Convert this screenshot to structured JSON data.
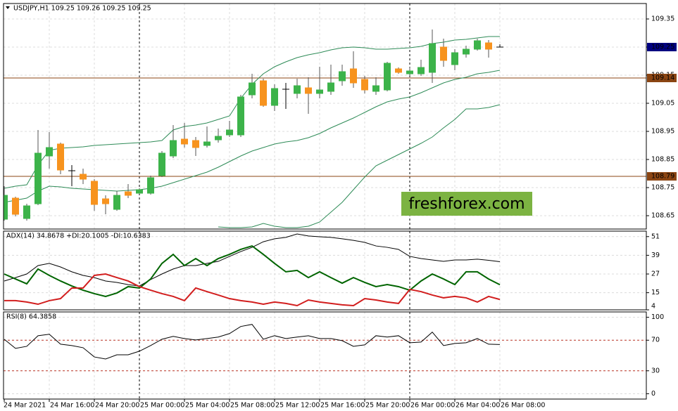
{
  "chart_data": [
    {
      "type": "candlestick",
      "title": "USDJPY,H1  109.25 109.26 109.25 109.25",
      "categories": [
        "24 Mar 2021",
        null,
        null,
        null,
        "24 Mar 16:00",
        null,
        null,
        null,
        "24 Mar 20:00",
        null,
        null,
        null,
        "25 Mar 00:00",
        null,
        null,
        null,
        "25 Mar 04:00",
        null,
        null,
        null,
        "25 Mar 08:00",
        null,
        null,
        null,
        "25 Mar 12:00",
        null,
        null,
        null,
        "25 Mar 16:00",
        null,
        null,
        null,
        "25 Mar 20:00",
        null,
        null,
        null,
        "26 Mar 00:00",
        null,
        null,
        null,
        "26 Mar 04:00",
        null,
        null,
        null,
        "26 Mar 08:00"
      ],
      "open": [
        108.6375,
        108.7125,
        108.64,
        108.6925,
        108.8625,
        108.905,
        108.81,
        108.7975,
        108.7725,
        108.71,
        108.6725,
        108.735,
        108.73,
        108.73,
        108.7925,
        108.8625,
        108.9225,
        108.9175,
        108.9,
        108.92,
        108.9375,
        108.9375,
        109.08,
        109.13,
        109.0425,
        109.1,
        109.085,
        109.105,
        109.085,
        109.0925,
        109.13,
        109.1725,
        109.135,
        109.0925,
        109.0975,
        109.1725,
        109.155,
        109.155,
        109.16,
        109.25,
        109.1875,
        109.225,
        109.2425,
        109.265,
        109.25
      ],
      "high": [
        108.755,
        108.7175,
        108.6925,
        108.955,
        108.9475,
        108.91,
        108.83,
        108.8175,
        108.78,
        108.7225,
        108.7375,
        108.7625,
        108.7475,
        108.7925,
        108.88,
        108.9725,
        108.98,
        108.93,
        108.9675,
        108.96,
        108.9875,
        109.08,
        109.155,
        109.1375,
        109.1175,
        109.1225,
        109.1375,
        109.1425,
        109.18,
        109.1875,
        109.1875,
        109.235,
        109.1475,
        109.1425,
        109.1975,
        109.1775,
        109.1775,
        109.205,
        109.3125,
        109.28,
        109.2425,
        109.255,
        109.28,
        109.275,
        109.26
      ],
      "low": [
        108.6325,
        108.6475,
        108.6325,
        108.6875,
        108.8175,
        108.7975,
        108.755,
        108.7625,
        108.6675,
        108.655,
        108.6675,
        108.7125,
        108.7275,
        108.725,
        108.7875,
        108.855,
        108.8925,
        108.8625,
        108.8925,
        108.91,
        108.93,
        108.93,
        109.0675,
        109.0375,
        109.0225,
        109.03,
        109.0675,
        109.0125,
        109.0675,
        109.08,
        109.1125,
        109.105,
        109.085,
        109.08,
        109.0925,
        109.155,
        109.1475,
        109.1475,
        109.1225,
        109.18,
        109.1675,
        109.2125,
        109.2375,
        109.2125,
        109.25
      ],
      "close": [
        108.7225,
        108.655,
        108.685,
        108.8725,
        108.8925,
        108.8125,
        108.81,
        108.78,
        108.69,
        108.6925,
        108.7225,
        108.7225,
        108.7425,
        108.785,
        108.8725,
        108.9175,
        108.905,
        108.8925,
        108.9125,
        108.9325,
        108.955,
        109.0725,
        109.1225,
        109.0425,
        109.1025,
        109.1,
        109.1125,
        109.085,
        109.0975,
        109.1225,
        109.1625,
        109.1225,
        109.0975,
        109.1125,
        109.1925,
        109.16,
        109.165,
        109.1775,
        109.2625,
        109.2025,
        109.23,
        109.2425,
        109.2725,
        109.2425,
        109.25
      ],
      "up_color": "#3cb34a",
      "down_color": "#f7931e",
      "doji_color": "#000000",
      "series": [
        {
          "color": "#2e8b57",
          "values": [
            108.7475,
            108.755,
            108.76,
            108.83,
            108.8825,
            108.89,
            108.8925,
            108.895,
            108.9,
            108.9025,
            108.905,
            108.9075,
            108.91,
            108.9125,
            108.9175,
            108.955,
            108.9675,
            108.9725,
            108.98,
            108.9925,
            109.005,
            109.0675,
            109.1175,
            109.155,
            109.18,
            109.1975,
            109.2125,
            109.2225,
            109.23,
            109.24,
            109.2475,
            109.25,
            109.2475,
            109.2425,
            109.2425,
            109.245,
            109.2475,
            109.2525,
            109.2625,
            109.2675,
            109.275,
            109.2775,
            109.2825,
            109.2875,
            109.2875
          ]
        },
        {
          "color": "#2e8b57",
          "values": [
            108.6975,
            108.705,
            108.7125,
            108.7375,
            108.755,
            108.7525,
            108.7475,
            108.745,
            108.7425,
            108.74,
            108.7375,
            108.74,
            108.7425,
            108.7475,
            108.755,
            108.7675,
            108.78,
            108.7925,
            108.805,
            108.8225,
            108.8425,
            108.8625,
            108.88,
            108.8925,
            108.905,
            108.9125,
            108.9175,
            108.9275,
            108.9425,
            108.9625,
            108.98,
            108.9975,
            109.0175,
            109.0375,
            109.055,
            109.065,
            109.0725,
            109.0875,
            109.105,
            109.1225,
            109.135,
            109.1425,
            109.155,
            109.16,
            109.1675
          ]
        },
        {
          "color": "#2e8b57",
          "values": [
            null,
            null,
            null,
            null,
            null,
            null,
            null,
            null,
            null,
            null,
            null,
            null,
            null,
            null,
            null,
            null,
            null,
            null,
            null,
            108.61,
            108.6075,
            108.6075,
            108.61,
            108.6225,
            108.6125,
            108.6075,
            108.6075,
            108.6125,
            108.6275,
            108.6625,
            108.6975,
            108.7425,
            108.7875,
            108.8275,
            108.8475,
            108.8675,
            108.8875,
            108.9075,
            108.93,
            108.9625,
            108.9925,
            109.03,
            109.03,
            109.035,
            109.045
          ]
        }
      ],
      "levels": [
        109.14,
        108.79
      ],
      "level_color": "#8b4513",
      "last_price": 109.25,
      "last_price_color": "#000080",
      "ylim": [
        108.6025,
        109.405
      ],
      "yticks": [
        108.65,
        108.75,
        108.85,
        108.95,
        109.05,
        109.15,
        109.25,
        109.35
      ],
      "grid": true,
      "watermark": "freshforex.com",
      "watermark_color": "#7cb342"
    },
    {
      "type": "line",
      "title": "ADX(14) 34.8678 +DI:20.1005 -DI:10.6383",
      "series": [
        {
          "color": "#000000",
          "width": 1,
          "values": [
            22.5,
            24.7,
            27.0,
            32.4,
            33.8,
            31.5,
            28.4,
            26.1,
            24.7,
            22.5,
            21.6,
            20.2,
            19.3,
            23.4,
            27.0,
            30.2,
            32.4,
            32.4,
            33.8,
            35.1,
            38.3,
            41.4,
            44.1,
            47.7,
            49.6,
            50.5,
            52.7,
            51.4,
            50.9,
            50.5,
            49.6,
            48.6,
            47.3,
            45.0,
            44.1,
            42.8,
            38.3,
            36.9,
            36.0,
            35.1,
            36.0,
            36.0,
            36.5,
            35.8,
            34.87
          ]
        },
        {
          "color": "#006400",
          "width": 2,
          "values": [
            27.0,
            23.8,
            20.7,
            30.2,
            26.1,
            22.5,
            19.3,
            16.6,
            14.4,
            12.6,
            14.8,
            18.9,
            18.0,
            23.8,
            33.8,
            39.6,
            32.4,
            36.9,
            32.4,
            36.9,
            39.6,
            42.8,
            45.0,
            39.6,
            33.8,
            28.4,
            29.3,
            24.7,
            28.4,
            24.7,
            21.1,
            24.7,
            21.6,
            18.9,
            20.2,
            18.9,
            16.6,
            22.5,
            27.0,
            23.8,
            20.2,
            28.4,
            28.4,
            23.8,
            20.1
          ]
        },
        {
          "color": "#d21e1e",
          "width": 2,
          "values": [
            9.9,
            9.9,
            9.0,
            7.6,
            9.9,
            11.2,
            18.0,
            18.0,
            26.1,
            27.0,
            24.7,
            22.5,
            18.9,
            16.6,
            14.4,
            12.6,
            9.9,
            18.0,
            15.7,
            13.5,
            11.2,
            9.9,
            9.0,
            7.6,
            9.0,
            8.1,
            6.7,
            10.3,
            9.0,
            8.1,
            7.2,
            6.7,
            11.2,
            10.3,
            9.0,
            8.1,
            17.1,
            15.7,
            13.5,
            11.7,
            12.6,
            11.7,
            9.0,
            12.6,
            10.64
          ]
        }
      ],
      "ylim": [
        4,
        54.5
      ],
      "yticks": [
        51,
        39,
        27,
        15,
        4
      ],
      "grid": true
    },
    {
      "type": "line",
      "title": "RSI(8) 64.3858",
      "series": [
        {
          "color": "#000000",
          "width": 1,
          "values": [
            71.3,
            59.3,
            62.0,
            75.9,
            77.8,
            64.8,
            63.0,
            60.2,
            48.1,
            45.4,
            50.9,
            50.9,
            55.6,
            63.0,
            71.3,
            75.0,
            72.2,
            70.4,
            72.2,
            74.1,
            78.7,
            88.0,
            90.7,
            71.3,
            75.9,
            72.2,
            74.1,
            75.9,
            72.2,
            72.2,
            69.4,
            62.0,
            63.9,
            75.9,
            74.1,
            75.9,
            66.7,
            67.6,
            80.6,
            63.0,
            65.7,
            66.7,
            72.2,
            64.8,
            64.39
          ]
        }
      ],
      "levels": [
        70,
        30
      ],
      "level_color": "#c0392b",
      "ylim": [
        -7,
        107
      ],
      "yticks": [
        100,
        70,
        30,
        0
      ],
      "grid": true
    }
  ]
}
